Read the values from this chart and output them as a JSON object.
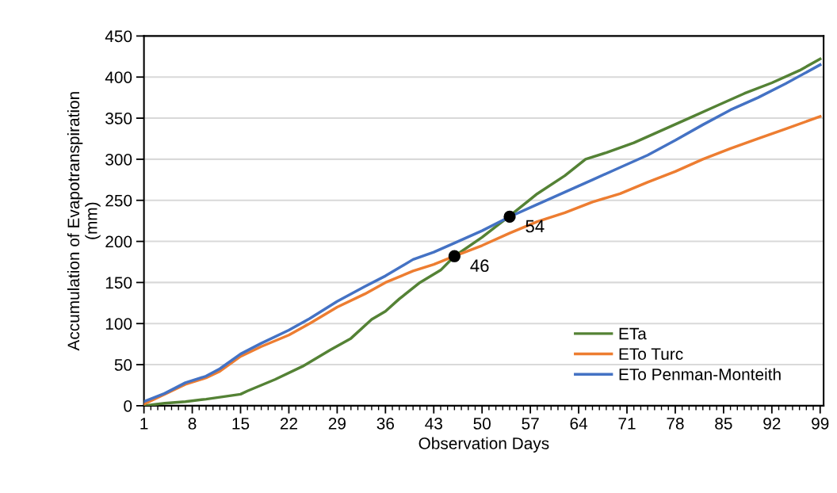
{
  "chart_data": {
    "type": "line",
    "xlabel": "Observation Days",
    "ylabel": "Accumulation of Evapotranspiration\n(mm)",
    "xlim": [
      1,
      99.5
    ],
    "xticks": [
      1,
      8,
      15,
      22,
      29,
      36,
      43,
      50,
      57,
      64,
      71,
      78,
      85,
      92,
      99
    ],
    "ylim": [
      0,
      450
    ],
    "yticks": [
      0,
      50,
      100,
      150,
      200,
      250,
      300,
      350,
      400,
      450
    ],
    "grid": "y",
    "legend": "bottom right",
    "marker": "none",
    "line_style": "solid",
    "series": [
      {
        "name": "ETa",
        "color": "#548235",
        "x": [
          1,
          4,
          7,
          10,
          15,
          16,
          20,
          24,
          28,
          31,
          34,
          36,
          38,
          41,
          44,
          46,
          50,
          54,
          58,
          62,
          65,
          68,
          72,
          76,
          80,
          84,
          88,
          92,
          96,
          99
        ],
        "values": [
          0,
          3,
          5,
          8,
          14,
          18,
          32,
          48,
          68,
          82,
          105,
          115,
          130,
          150,
          165,
          182,
          205,
          231,
          258,
          280,
          300,
          308,
          320,
          335,
          350,
          365,
          380,
          393,
          408,
          422
        ]
      },
      {
        "name": "ETo Turc",
        "color": "#ed7d31",
        "x": [
          1,
          4,
          7,
          10,
          12,
          15,
          18,
          22,
          25,
          29,
          33,
          36,
          40,
          43,
          46,
          50,
          54,
          58,
          62,
          66,
          70,
          74,
          78,
          82,
          86,
          90,
          94,
          99
        ],
        "values": [
          2,
          14,
          26,
          34,
          42,
          60,
          72,
          86,
          100,
          120,
          136,
          150,
          164,
          172,
          182,
          195,
          210,
          224,
          235,
          248,
          258,
          272,
          285,
          300,
          313,
          325,
          337,
          352
        ]
      },
      {
        "name": "ETo Penman-Monteith",
        "color": "#4472c4",
        "x": [
          1,
          4,
          7,
          10,
          12,
          15,
          18,
          22,
          25,
          29,
          33,
          36,
          40,
          43,
          46,
          50,
          54,
          58,
          62,
          66,
          70,
          74,
          78,
          82,
          86,
          90,
          94,
          99
        ],
        "values": [
          5,
          15,
          28,
          36,
          45,
          63,
          76,
          92,
          106,
          127,
          145,
          158,
          178,
          187,
          198,
          213,
          230,
          245,
          260,
          275,
          290,
          305,
          323,
          342,
          360,
          375,
          392,
          415
        ]
      }
    ],
    "annotations": [
      {
        "text": "46",
        "x": 46,
        "y": 182
      },
      {
        "text": "54",
        "x": 54,
        "y": 230
      }
    ]
  }
}
